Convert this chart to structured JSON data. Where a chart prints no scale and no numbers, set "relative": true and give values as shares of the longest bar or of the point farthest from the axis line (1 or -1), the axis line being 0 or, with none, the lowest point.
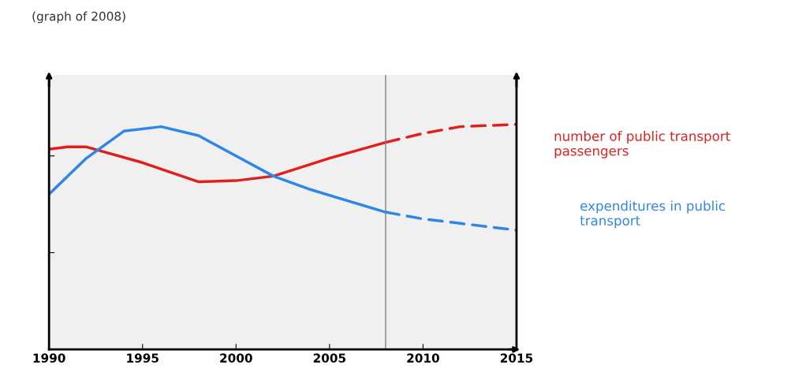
{
  "chart_data": {
    "type": "line",
    "title": "(graph of 2008)",
    "relative": true,
    "xlim": [
      1990,
      2015
    ],
    "xticks": [
      1990,
      1995,
      2000,
      2005,
      2010,
      2015
    ],
    "tick_labels": "x",
    "grid": false,
    "legend": false,
    "marker": "none",
    "ref_lines": [
      {
        "axis": "x",
        "value": 2008,
        "color": "#808080"
      }
    ],
    "series": [
      {
        "name": "number of public transport passengers",
        "color": "#e0201c",
        "line_style": "solid",
        "x": [
          1990,
          1991,
          1992,
          1995,
          1998,
          2000,
          2002,
          2005,
          2008
        ],
        "values": [
          0.89,
          0.9,
          0.9,
          0.83,
          0.745,
          0.75,
          0.77,
          0.85,
          0.92
        ]
      },
      {
        "color": "#e0201c",
        "line_style": "dashed",
        "x": [
          2008,
          2010,
          2012,
          2015
        ],
        "values": [
          0.92,
          0.96,
          0.99,
          1.0
        ]
      },
      {
        "name": "expenditures in public transport",
        "color": "#2f86e6",
        "line_style": "solid",
        "x": [
          1990,
          1992,
          1994,
          1996,
          1998,
          2000,
          2002,
          2004,
          2006,
          2008
        ],
        "values": [
          0.69,
          0.85,
          0.97,
          0.99,
          0.95,
          0.86,
          0.77,
          0.71,
          0.66,
          0.61
        ]
      },
      {
        "color": "#2f86e6",
        "line_style": "dashed",
        "x": [
          2008,
          2010,
          2012,
          2015
        ],
        "values": [
          0.61,
          0.58,
          0.56,
          0.53
        ]
      }
    ]
  }
}
